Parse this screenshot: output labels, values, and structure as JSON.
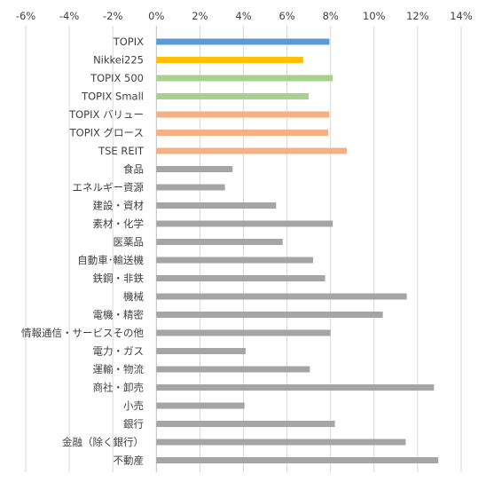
{
  "chart_data": {
    "type": "bar",
    "orientation": "horizontal",
    "title": "",
    "xlabel": "",
    "ylabel": "",
    "xlim": [
      -6,
      14
    ],
    "x_ticks": [
      -6,
      -4,
      -2,
      0,
      2,
      4,
      6,
      8,
      10,
      12,
      14
    ],
    "x_tick_labels": [
      "-6%",
      "-4%",
      "-2%",
      "0%",
      "2%",
      "4%",
      "6%",
      "8%",
      "10%",
      "12%",
      "14%"
    ],
    "axis_position": "top",
    "grid": true,
    "legend": "none",
    "categories": [
      "TOPIX",
      "Nikkei225",
      "TOPIX 500",
      "TOPIX Small",
      "TOPIX バリュー",
      "TOPIX グロース",
      "TSE REIT",
      "食品",
      "エネルギー資源",
      "建設・資材",
      "素材・化学",
      "医薬品",
      "自動車･輸送機",
      "鉄鋼・非鉄",
      "機械",
      "電機・精密",
      "情報通信・サービスその他",
      "電力・ガス",
      "運輸・物流",
      "商社・卸売",
      "小売",
      "銀行",
      "金融（除く銀行）",
      "不動産"
    ],
    "values": [
      7.95,
      6.75,
      8.1,
      7.0,
      7.95,
      7.9,
      8.75,
      3.5,
      3.15,
      5.5,
      8.1,
      5.8,
      7.2,
      7.75,
      11.5,
      10.4,
      8.0,
      4.1,
      7.05,
      12.75,
      4.05,
      8.2,
      11.45,
      12.95
    ],
    "colors": [
      "#5b9bd5",
      "#ffc000",
      "#a9d18e",
      "#a9d18e",
      "#f4b183",
      "#f4b183",
      "#f4b183",
      "#a5a5a5",
      "#a5a5a5",
      "#a5a5a5",
      "#a5a5a5",
      "#a5a5a5",
      "#a5a5a5",
      "#a5a5a5",
      "#a5a5a5",
      "#a5a5a5",
      "#a5a5a5",
      "#a5a5a5",
      "#a5a5a5",
      "#a5a5a5",
      "#a5a5a5",
      "#a5a5a5",
      "#a5a5a5",
      "#a5a5a5"
    ],
    "gridline_color": "#d9d9d9",
    "axis_line_color": "#bfbfbf"
  }
}
